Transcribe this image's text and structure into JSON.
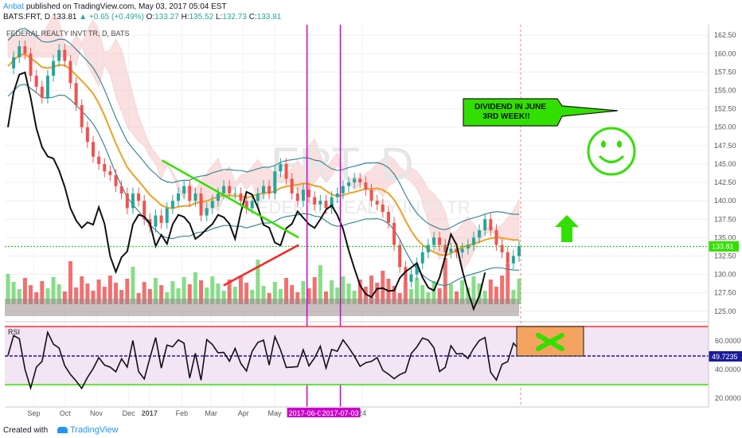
{
  "header": {
    "author": "Anbat",
    "published": "published on TradingView.com, May 03, 2017 05:04 EST",
    "symbol": "BATS:FRT, D",
    "close": "133.81",
    "change": "▲ +0.65 (+0.49%)",
    "open_label": "O:",
    "open": "133.27",
    "high_label": "H:",
    "high": "135.52",
    "low_label": "L:",
    "low": "132.73",
    "close_label": "C:",
    "close_value": "133.81"
  },
  "legend": "FEDERAL REALTY INVT TR, D, BATS",
  "watermark": {
    "big": "FRT, D",
    "small": "FEDERAL REALTY INVT TR"
  },
  "callout": {
    "line1": "DIVIDEND IN JUNE",
    "line2": "3RD WEEK!!"
  },
  "smiley_icon": "smiley-face-icon",
  "target_icon": "green-up-arrow-icon",
  "rsi": {
    "label": "RSI",
    "value_badge": "49.7235",
    "ticks": [
      "60.0000",
      "40.0000",
      "20.0000"
    ]
  },
  "price_badge": "133.81",
  "footer": {
    "created": "Created with",
    "brand": "TradingView"
  },
  "colors": {
    "up": "#26a69a",
    "down": "#ef5350",
    "green": "#32e000",
    "magenta": "#cc00cc",
    "orange": "#ff9800"
  },
  "chart_data": {
    "type": "line",
    "price_ticks": [
      "162.50",
      "160.00",
      "157.50",
      "155.00",
      "152.50",
      "150.00",
      "147.50",
      "145.00",
      "142.50",
      "140.00",
      "137.50",
      "135.00",
      "132.50",
      "130.00",
      "127.50",
      "125.00"
    ],
    "ylim": [
      124,
      163.5
    ],
    "x_labels": [
      "Sep",
      "Oct",
      "Nov",
      "Dec",
      "2017",
      "Feb",
      "Mar",
      "Apr",
      "May",
      "2017-06-01",
      "2017-07-03",
      "24"
    ],
    "close_series": {
      "name": "",
      "values": [
        158,
        159.5,
        161,
        160,
        157,
        155.5,
        154,
        157,
        159,
        160.5,
        159,
        156,
        153,
        150,
        148,
        146,
        145,
        144,
        143.5,
        142,
        141,
        139,
        141,
        140,
        137.5,
        136.5,
        138,
        137,
        139,
        140,
        141,
        142,
        140,
        141,
        138,
        139,
        140,
        141,
        142,
        141,
        141,
        140,
        139,
        140,
        141,
        142,
        141,
        144,
        145,
        143,
        141,
        140,
        141.5,
        140.5,
        139.5,
        140,
        139,
        140.5,
        141,
        142,
        142.5,
        143,
        142.5,
        141.5,
        140,
        139.5,
        138.5,
        137,
        134,
        131,
        129,
        130,
        131.5,
        133,
        134,
        135,
        134,
        133,
        133.5,
        133,
        133.5,
        134,
        135,
        136,
        137.5,
        136,
        134,
        133,
        131.5,
        132.5,
        133.8
      ]
    },
    "annotations": {
      "resistance_line": {
        "from": [
          "2017-01-13",
          145.5
        ],
        "to": [
          "2017-05-24",
          135
        ]
      },
      "support_line": {
        "from": [
          "2017-03-13",
          128.5
        ],
        "to": [
          "2017-05-24",
          134
        ]
      },
      "vertical_lines": [
        "2017-06-01",
        "2017-07-03"
      ],
      "price_level": 133.81
    }
  }
}
